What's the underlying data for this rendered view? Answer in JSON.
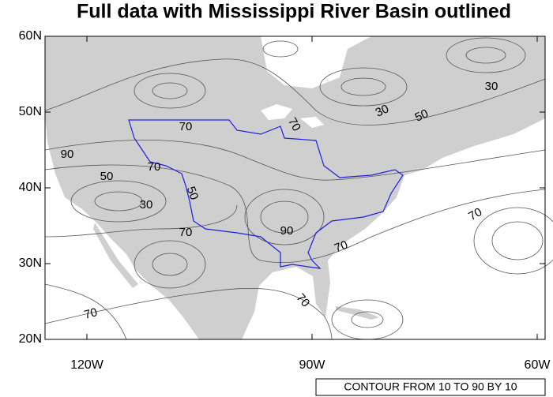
{
  "header": {
    "title": "Full data with Mississippi River Basin outlined"
  },
  "map": {
    "lat_ticks": [
      {
        "value": 60,
        "label": "60N"
      },
      {
        "value": 50,
        "label": "50N"
      },
      {
        "value": 40,
        "label": "40N"
      },
      {
        "value": 30,
        "label": "30N"
      },
      {
        "value": 20,
        "label": "20N"
      }
    ],
    "lon_ticks": [
      {
        "value": -120,
        "label": "120W"
      },
      {
        "value": -90,
        "label": "90W"
      },
      {
        "value": -60,
        "label": "60W"
      }
    ],
    "contour_labels": [
      70,
      70,
      90,
      70,
      50,
      50,
      30,
      70,
      90,
      70,
      30,
      30,
      50,
      70,
      70,
      70
    ]
  },
  "footer": {
    "info": "CONTOUR FROM 10 TO 90 BY 10"
  }
}
